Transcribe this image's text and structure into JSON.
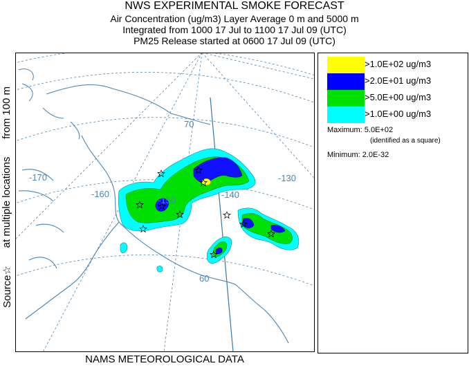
{
  "header": {
    "title": "NWS EXPERIMENTAL SMOKE FORECAST",
    "line2": "Air Concentration (ug/m3) Layer Average    0 m and  5000 m",
    "line3": "Integrated from 1000 17 Jul to 1100 17 Jul 09 (UTC)",
    "line4": "PM25 Release started at 0600 17 Jul 09 (UTC)"
  },
  "side_label": {
    "source": "Source",
    "at": "at multiple locations",
    "from": "from   100 m",
    "star_icon": "star-icon"
  },
  "footer": {
    "text": "NAMS METEOROLOGICAL DATA"
  },
  "legend": {
    "items": [
      {
        "label": ">1.0E+02 ug/m3",
        "color": "#ffff00"
      },
      {
        "label": ">2.0E+01 ug/m3",
        "color": "#0000ff"
      },
      {
        "label": ">5.0E+00 ug/m3",
        "color": "#00e000"
      },
      {
        "label": ">1.0E+00 ug/m3",
        "color": "#00ffff"
      }
    ],
    "maximum": "Maximum: 5.0E+02",
    "maximum_note": "(identified as a square)",
    "minimum": "Minimum: 2.0E-32"
  },
  "map": {
    "grid_labels": {
      "lon_170": "-170",
      "lon_160": "-160",
      "lon_150": "-150",
      "lon_140": "-140",
      "lon_130": "-130",
      "lat_70": "70",
      "lat_60": "60"
    },
    "colors": {
      "coast": "#4a86b6",
      "grid": "#4a86b6",
      "border": "#3377aa"
    }
  }
}
